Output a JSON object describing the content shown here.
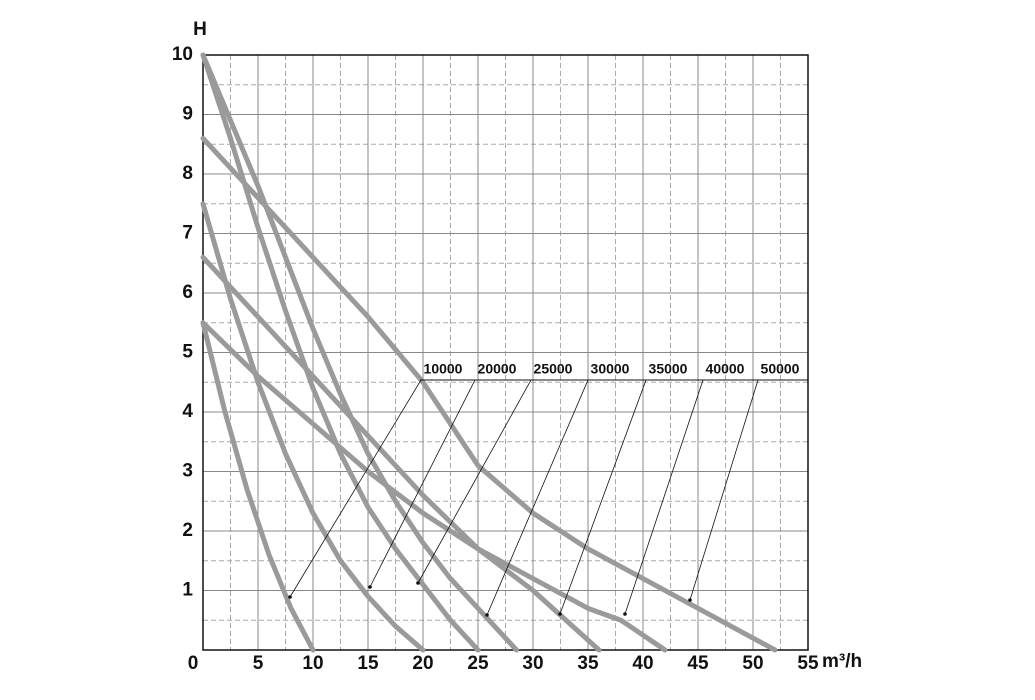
{
  "chart_data": {
    "type": "line",
    "y_label": "H",
    "x_label": "m³/h",
    "xlim": [
      0,
      55
    ],
    "xticks": [
      0,
      5,
      10,
      15,
      20,
      25,
      30,
      35,
      40,
      45,
      50,
      55
    ],
    "ylim": [
      0,
      10
    ],
    "yticks": [
      1,
      2,
      3,
      4,
      5,
      6,
      7,
      8,
      9,
      10
    ],
    "grid": true,
    "color": "#9a9a9a",
    "series": [
      {
        "name": "10000",
        "x": [
          0,
          2,
          4,
          6,
          8,
          10
        ],
        "values": [
          5.5,
          4,
          2.7,
          1.6,
          0.7,
          0
        ]
      },
      {
        "name": "20000",
        "x": [
          0,
          2.5,
          5,
          7.5,
          10,
          12.5,
          15,
          17.5,
          20
        ],
        "values": [
          7.5,
          5.9,
          4.5,
          3.3,
          2.3,
          1.5,
          0.9,
          0.4,
          0
        ]
      },
      {
        "name": "25000",
        "x": [
          0,
          2.5,
          5,
          7.5,
          10,
          12.5,
          15,
          17.5,
          20,
          22.5,
          25
        ],
        "values": [
          10,
          8.6,
          7.1,
          5.7,
          4.4,
          3.3,
          2.4,
          1.7,
          1.1,
          0.5,
          0
        ]
      },
      {
        "name": "30000",
        "x": [
          0,
          2.5,
          5,
          7.5,
          10,
          12.5,
          15,
          17.5,
          20,
          22.5,
          25,
          28.5
        ],
        "values": [
          10,
          8.9,
          7.8,
          6.6,
          5.4,
          4.3,
          3.3,
          2.5,
          1.8,
          1.2,
          0.7,
          0
        ]
      },
      {
        "name": "35000",
        "x": [
          0,
          5,
          10,
          15,
          20,
          25,
          30,
          33,
          36
        ],
        "values": [
          6.6,
          5.6,
          4.6,
          3.6,
          2.6,
          1.7,
          1.0,
          0.5,
          0
        ]
      },
      {
        "name": "40000",
        "x": [
          0,
          5,
          10,
          15,
          20,
          25,
          30,
          35,
          38,
          42
        ],
        "values": [
          5.5,
          4.6,
          3.8,
          3.0,
          2.3,
          1.7,
          1.2,
          0.7,
          0.5,
          0
        ]
      },
      {
        "name": "50000",
        "x": [
          0,
          5,
          10,
          15,
          20,
          22.5,
          25,
          30,
          35,
          40,
          45,
          48,
          52
        ],
        "values": [
          8.6,
          7.6,
          6.6,
          5.6,
          4.5,
          3.8,
          3.1,
          2.3,
          1.7,
          1.2,
          0.7,
          0.4,
          0
        ]
      }
    ]
  }
}
